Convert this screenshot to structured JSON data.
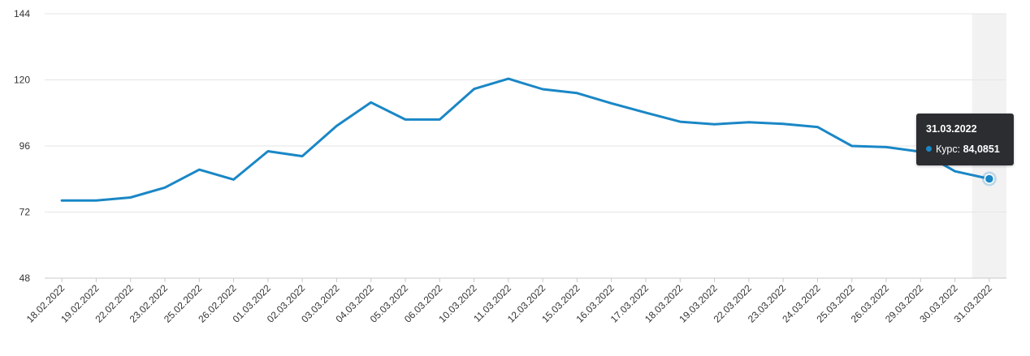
{
  "chart_data": {
    "type": "line",
    "categories": [
      "18.02.2022",
      "19.02.2022",
      "22.02.2022",
      "23.02.2022",
      "25.02.2022",
      "26.02.2022",
      "01.03.2022",
      "02.03.2022",
      "03.03.2022",
      "04.03.2022",
      "05.03.2022",
      "06.03.2022",
      "10.03.2022",
      "11.03.2022",
      "12.03.2022",
      "15.03.2022",
      "16.03.2022",
      "17.03.2022",
      "18.03.2022",
      "19.03.2022",
      "22.03.2022",
      "23.03.2022",
      "24.03.2022",
      "25.03.2022",
      "26.03.2022",
      "29.03.2022",
      "30.03.2022",
      "31.03.2022"
    ],
    "series": [
      {
        "name": "Курс",
        "values": [
          76.2,
          76.2,
          77.3,
          80.9,
          87.4,
          83.8,
          94.1,
          92.3,
          103.3,
          111.8,
          105.6,
          105.6,
          116.7,
          120.4,
          116.6,
          115.2,
          111.5,
          108.1,
          104.8,
          103.9,
          104.6,
          104.0,
          102.9,
          96.0,
          95.6,
          93.9,
          86.8,
          84.0851
        ],
        "color": "#1a87c6"
      }
    ],
    "ylim": [
      48,
      144
    ],
    "yticks": [
      "48",
      "72",
      "96",
      "120",
      "144"
    ],
    "grid": true,
    "highlight_index": 27
  },
  "tooltip": {
    "date": "31.03.2022",
    "label": "Курс:",
    "value": "84,0851"
  }
}
